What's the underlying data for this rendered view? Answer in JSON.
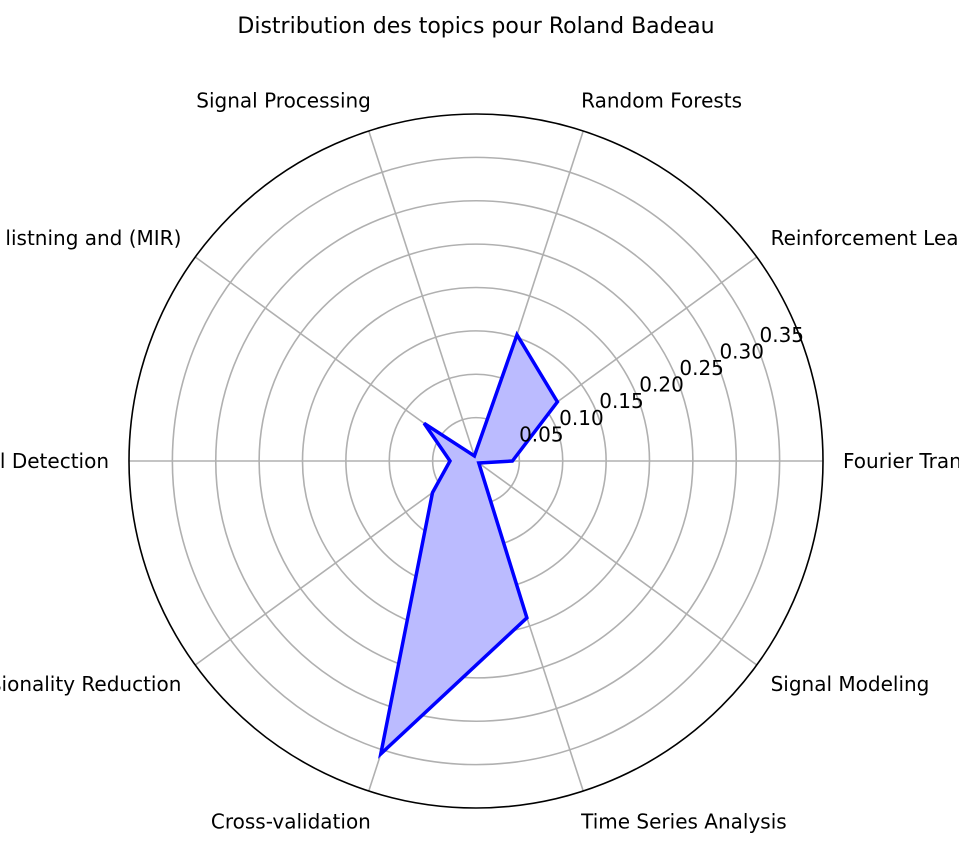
{
  "chart_data": {
    "type": "radar",
    "title": "Distribution des topics pour Roland Badeau",
    "categories": [
      "Fourier Transform",
      "Reinforcement Learning",
      "Random Forests",
      "Signal Processing",
      "Machine listning and (MIR)",
      "Signal Detection",
      "Dimensionality Reduction",
      "Cross-validation",
      "Time Series Analysis",
      "Signal Modeling"
    ],
    "values": [
      0.042,
      0.116,
      0.153,
      0.006,
      0.074,
      0.03,
      0.062,
      0.355,
      0.19,
      0.004
    ],
    "radial_ticks": [
      0.05,
      0.1,
      0.15,
      0.2,
      0.25,
      0.3,
      0.35
    ],
    "radial_tick_labels": [
      "0.05",
      "0.10",
      "0.15",
      "0.20",
      "0.25",
      "0.30",
      "0.35"
    ],
    "rlim": [
      0,
      0.4
    ],
    "grid": true,
    "colors": {
      "line": "#0000ff",
      "fill": "#bbbbff",
      "grid": "#b0b0b0",
      "frame": "#000000"
    }
  }
}
